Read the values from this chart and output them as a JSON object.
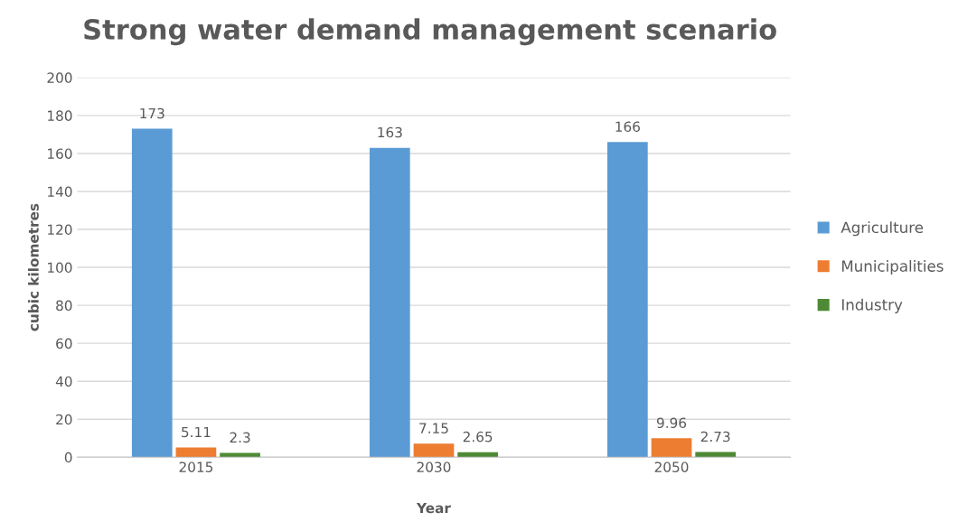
{
  "chart_data": {
    "type": "bar",
    "title": "Strong water demand management scenario",
    "xlabel": "Year",
    "ylabel": "cubic kilometres",
    "categories": [
      "2015",
      "2030",
      "2050"
    ],
    "series": [
      {
        "name": "Agriculture",
        "color": "#5b9bd5",
        "values": [
          173,
          163,
          166
        ]
      },
      {
        "name": "Municipalities",
        "color": "#ed7d31",
        "values": [
          5.11,
          7.15,
          9.96
        ]
      },
      {
        "name": "Industry",
        "color": "#4e8a35",
        "values": [
          2.3,
          2.65,
          2.73
        ]
      }
    ],
    "ylim": [
      0,
      200
    ],
    "yticks": [
      0,
      20,
      40,
      60,
      80,
      100,
      120,
      140,
      160,
      180,
      200
    ],
    "grid": "y",
    "legend": "right",
    "data_labels": true
  }
}
